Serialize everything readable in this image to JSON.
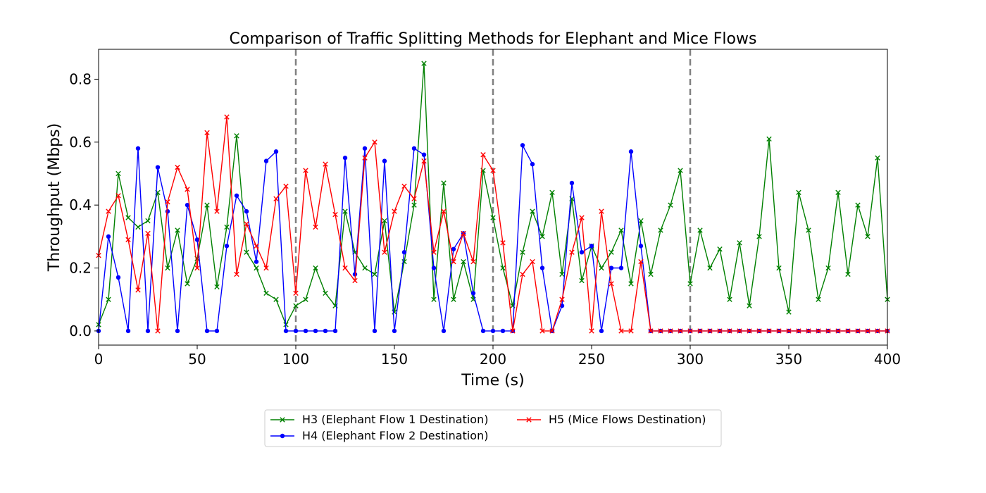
{
  "chart_data": {
    "type": "line",
    "title": "Comparison of Traffic Splitting Methods for Elephant and Mice Flows",
    "xlabel": "Time (s)",
    "ylabel": "Throughput (Mbps)",
    "xlim": [
      0,
      400
    ],
    "ylim": [
      -0.045,
      0.895
    ],
    "xticks": [
      0,
      50,
      100,
      150,
      200,
      250,
      300,
      350,
      400
    ],
    "yticks": [
      0.0,
      0.2,
      0.4,
      0.6,
      0.8
    ],
    "xtick_labels": [
      "0",
      "50",
      "100",
      "150",
      "200",
      "250",
      "300",
      "350",
      "400"
    ],
    "ytick_labels": [
      "0.0",
      "0.2",
      "0.4",
      "0.6",
      "0.8"
    ],
    "vlines": [
      100,
      200,
      300
    ],
    "grid": false,
    "legend_position": "bottom-center, below plot",
    "series": [
      {
        "name": "H3 (Elephant Flow 1 Destination)",
        "color": "#008000",
        "marker": "x",
        "x": [
          0,
          5,
          10,
          15,
          20,
          25,
          30,
          35,
          40,
          45,
          50,
          55,
          60,
          65,
          70,
          75,
          80,
          85,
          90,
          95,
          100,
          105,
          110,
          115,
          120,
          125,
          130,
          135,
          140,
          145,
          150,
          155,
          160,
          165,
          170,
          175,
          180,
          185,
          190,
          195,
          200,
          205,
          210,
          215,
          220,
          225,
          230,
          235,
          240,
          245,
          250,
          255,
          260,
          265,
          270,
          275,
          280,
          285,
          290,
          295,
          300,
          305,
          310,
          315,
          320,
          325,
          330,
          335,
          340,
          345,
          350,
          355,
          360,
          365,
          370,
          375,
          380,
          385,
          390,
          395,
          400
        ],
        "values": [
          0.02,
          0.1,
          0.5,
          0.36,
          0.33,
          0.35,
          0.44,
          0.2,
          0.32,
          0.15,
          0.23,
          0.4,
          0.14,
          0.33,
          0.62,
          0.25,
          0.2,
          0.12,
          0.1,
          0.02,
          0.08,
          0.1,
          0.2,
          0.12,
          0.08,
          0.38,
          0.25,
          0.2,
          0.18,
          0.35,
          0.06,
          0.22,
          0.4,
          0.85,
          0.1,
          0.47,
          0.1,
          0.22,
          0.1,
          0.51,
          0.36,
          0.2,
          0.08,
          0.25,
          0.38,
          0.3,
          0.44,
          0.18,
          0.42,
          0.16,
          0.27,
          0.2,
          0.25,
          0.32,
          0.15,
          0.35,
          0.18,
          0.32,
          0.4,
          0.51,
          0.15,
          0.32,
          0.2,
          0.26,
          0.1,
          0.28,
          0.08,
          0.3,
          0.61,
          0.2,
          0.06,
          0.44,
          0.32,
          0.1,
          0.2,
          0.44,
          0.18,
          0.4,
          0.3,
          0.55,
          0.1
        ]
      },
      {
        "name": "H4 (Elephant Flow 2 Destination)",
        "color": "#0000ff",
        "marker": "o",
        "x": [
          0,
          5,
          10,
          15,
          20,
          25,
          30,
          35,
          40,
          45,
          50,
          55,
          60,
          65,
          70,
          75,
          80,
          85,
          90,
          95,
          100,
          105,
          110,
          115,
          120,
          125,
          130,
          135,
          140,
          145,
          150,
          155,
          160,
          165,
          170,
          175,
          180,
          185,
          190,
          195,
          200,
          205,
          210,
          215,
          220,
          225,
          230,
          235,
          240,
          245,
          250,
          255,
          260,
          265,
          270,
          275,
          280,
          285,
          290,
          295,
          300,
          305,
          310,
          315,
          320,
          325,
          330,
          335,
          340,
          345,
          350,
          355,
          360,
          365,
          370,
          375,
          380,
          385,
          390,
          395,
          400
        ],
        "values": [
          0.0,
          0.3,
          0.17,
          0.0,
          0.58,
          0.0,
          0.52,
          0.38,
          0.0,
          0.4,
          0.29,
          0.0,
          0.0,
          0.27,
          0.43,
          0.38,
          0.22,
          0.54,
          0.57,
          0.0,
          0.0,
          0.0,
          0.0,
          0.0,
          0.0,
          0.55,
          0.18,
          0.58,
          0.0,
          0.54,
          0.0,
          0.25,
          0.58,
          0.56,
          0.2,
          0.0,
          0.26,
          0.31,
          0.12,
          0.0,
          0.0,
          0.0,
          0.0,
          0.59,
          0.53,
          0.2,
          0.0,
          0.08,
          0.47,
          0.25,
          0.27,
          0.0,
          0.2,
          0.2,
          0.57,
          0.27,
          0.0,
          0.0,
          0.0,
          0.0,
          0.0,
          0.0,
          0.0,
          0.0,
          0.0,
          0.0,
          0.0,
          0.0,
          0.0,
          0.0,
          0.0,
          0.0,
          0.0,
          0.0,
          0.0,
          0.0,
          0.0,
          0.0,
          0.0,
          0.0,
          0.0
        ]
      },
      {
        "name": "H5 (Mice Flows Destination)",
        "color": "#ff0000",
        "marker": "x",
        "x": [
          0,
          5,
          10,
          15,
          20,
          25,
          30,
          35,
          40,
          45,
          50,
          55,
          60,
          65,
          70,
          75,
          80,
          85,
          90,
          95,
          100,
          105,
          110,
          115,
          120,
          125,
          130,
          135,
          140,
          145,
          150,
          155,
          160,
          165,
          170,
          175,
          180,
          185,
          190,
          195,
          200,
          205,
          210,
          215,
          220,
          225,
          230,
          235,
          240,
          245,
          250,
          255,
          260,
          265,
          270,
          275,
          280,
          285,
          290,
          295,
          300,
          305,
          310,
          315,
          320,
          325,
          330,
          335,
          340,
          345,
          350,
          355,
          360,
          365,
          370,
          375,
          380,
          385,
          390,
          395,
          400
        ],
        "values": [
          0.24,
          0.38,
          0.43,
          0.29,
          0.13,
          0.31,
          0.0,
          0.41,
          0.52,
          0.45,
          0.2,
          0.63,
          0.38,
          0.68,
          0.18,
          0.34,
          0.27,
          0.2,
          0.42,
          0.46,
          0.12,
          0.51,
          0.33,
          0.53,
          0.37,
          0.2,
          0.16,
          0.55,
          0.6,
          0.25,
          0.38,
          0.46,
          0.42,
          0.54,
          0.25,
          0.38,
          0.22,
          0.31,
          0.22,
          0.56,
          0.51,
          0.28,
          0.0,
          0.18,
          0.22,
          0.0,
          0.0,
          0.1,
          0.25,
          0.36,
          0.0,
          0.38,
          0.15,
          0.0,
          0.0,
          0.22,
          0.0,
          0.0,
          0.0,
          0.0,
          0.0,
          0.0,
          0.0,
          0.0,
          0.0,
          0.0,
          0.0,
          0.0,
          0.0,
          0.0,
          0.0,
          0.0,
          0.0,
          0.0,
          0.0,
          0.0,
          0.0,
          0.0,
          0.0,
          0.0,
          0.0
        ]
      }
    ]
  }
}
